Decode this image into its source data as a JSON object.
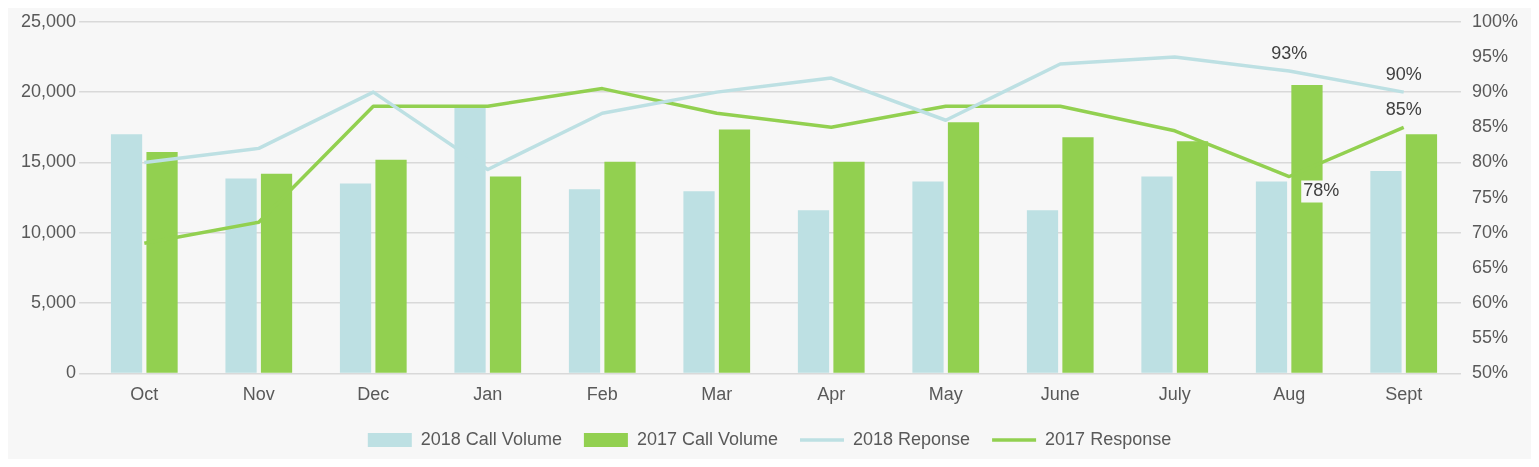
{
  "chart_data": {
    "type": "bar",
    "categories": [
      "Oct",
      "Nov",
      "Dec",
      "Jan",
      "Feb",
      "Mar",
      "Apr",
      "May",
      "June",
      "July",
      "Aug",
      "Sept"
    ],
    "series": [
      {
        "name": "2018 Call Volume",
        "color": "#bde0e3",
        "values": [
          17000,
          13850,
          13500,
          19000,
          13100,
          12950,
          11600,
          13650,
          11600,
          14000,
          13650,
          14400
        ]
      },
      {
        "name": "2017 Call Volume",
        "color": "#92d050",
        "values": [
          15750,
          14200,
          15200,
          14000,
          15050,
          17350,
          15050,
          17850,
          16800,
          16500,
          20500,
          17000
        ]
      },
      {
        "name": "2018 Reponse",
        "type": "line",
        "axis": "y2",
        "color": "#bde0e3",
        "values": [
          80,
          82,
          90,
          79,
          87,
          90,
          92,
          86,
          94,
          95,
          93,
          90
        ],
        "value_labels": [
          null,
          null,
          null,
          null,
          null,
          null,
          null,
          null,
          null,
          null,
          "93%",
          "90%"
        ]
      },
      {
        "name": "2017 Response",
        "type": "line",
        "axis": "y2",
        "color": "#92d050",
        "values": [
          68.5,
          71.5,
          88,
          88,
          90.5,
          87,
          85,
          88,
          88,
          84.5,
          78,
          85
        ],
        "value_labels": [
          null,
          null,
          null,
          null,
          null,
          null,
          null,
          null,
          null,
          null,
          "78%",
          "85%"
        ]
      }
    ],
    "ylim": [
      0,
      25000
    ],
    "yticks": [
      {
        "value": 0,
        "label": "0"
      },
      {
        "value": 5000,
        "label": "5,000"
      },
      {
        "value": 10000,
        "label": "10,000"
      },
      {
        "value": 15000,
        "label": "15,000"
      },
      {
        "value": 20000,
        "label": "20,000"
      },
      {
        "value": 25000,
        "label": "25,000"
      }
    ],
    "y2lim": [
      50,
      100
    ],
    "y2ticks": [
      {
        "value": 50,
        "label": "50%"
      },
      {
        "value": 55,
        "label": "55%"
      },
      {
        "value": 60,
        "label": "60%"
      },
      {
        "value": 65,
        "label": "65%"
      },
      {
        "value": 70,
        "label": "70%"
      },
      {
        "value": 75,
        "label": "75%"
      },
      {
        "value": 80,
        "label": "80%"
      },
      {
        "value": 85,
        "label": "85%"
      },
      {
        "value": 90,
        "label": "90%"
      },
      {
        "value": 95,
        "label": "95%"
      },
      {
        "value": 100,
        "label": "100%"
      }
    ],
    "grid": "y",
    "legend": "bottom",
    "marker": "none",
    "line_style": "solid"
  }
}
